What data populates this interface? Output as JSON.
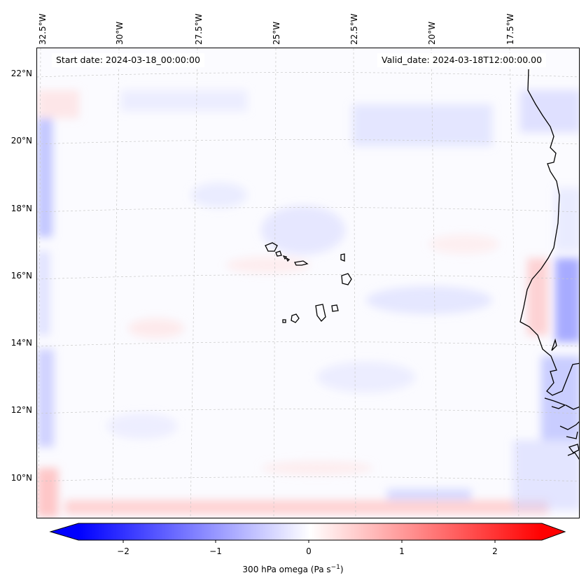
{
  "map": {
    "lon_labels": [
      "32.5°W",
      "30°W",
      "27.5°W",
      "25°W",
      "22.5°W",
      "20°W",
      "17.5°W"
    ],
    "lat_labels": [
      "22°N",
      "20°N",
      "18°N",
      "16°N",
      "14°N",
      "12°N",
      "10°N"
    ],
    "start_date": "Start date: 2024-03-18_00:00:00",
    "valid_date": "Valid_date: 2024-03-18T12:00:00.00",
    "field": "300 hPa omega",
    "colors": {
      "negative": "#0000ff",
      "zero": "#ffffff",
      "positive": "#ff0000",
      "coast": "#000000",
      "grid": "#bbbbbb"
    }
  },
  "colorbar": {
    "ticks": [
      "−2",
      "−1",
      "0",
      "1",
      "2"
    ],
    "label_main": "300 hPa omega (Pa s",
    "label_sup": "−1",
    "label_end": ")",
    "range": [
      -2.7,
      2.7
    ]
  }
}
